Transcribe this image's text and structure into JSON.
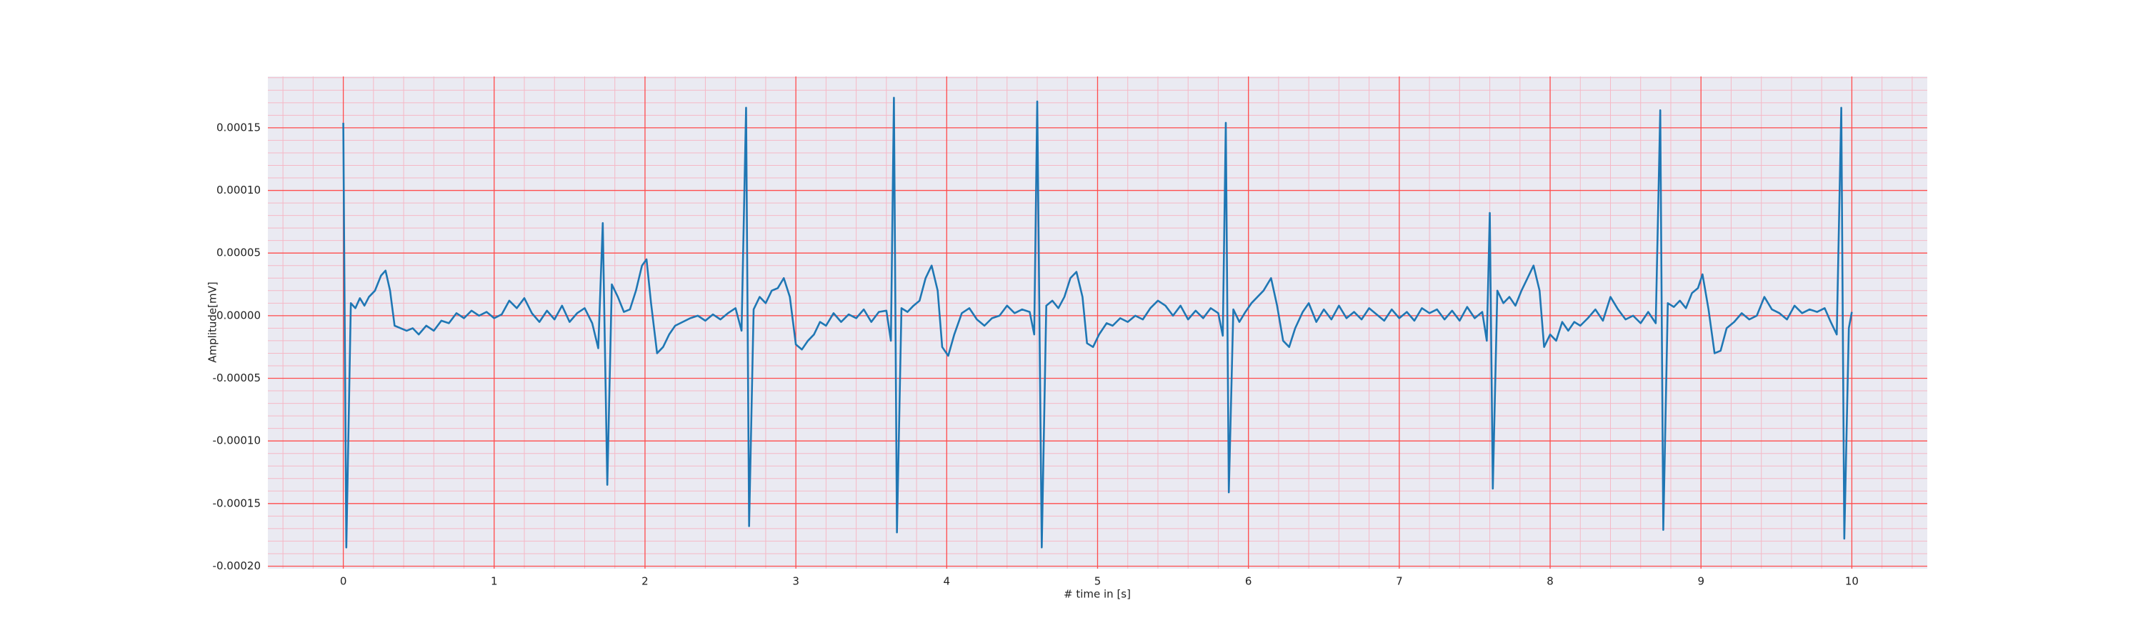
{
  "chart_data": {
    "type": "line",
    "xlabel": "# time in [s]",
    "ylabel": "Amplitude[mV]",
    "color": "#1f77b4",
    "background": "#eaeaf2",
    "grid": true,
    "grid_color": "#ff4d4d",
    "minor_grid_color": "#f5b8c6",
    "minor_divisions": 5,
    "xlim": [
      -0.5,
      10.5
    ],
    "ylim": [
      -0.000202,
      0.000191
    ],
    "xticks": [
      0,
      1,
      2,
      3,
      4,
      5,
      6,
      7,
      8,
      9,
      10
    ],
    "yticks": [
      {
        "value": -0.0002,
        "label": "-0.00020"
      },
      {
        "value": -0.00015,
        "label": "-0.00015"
      },
      {
        "value": -0.0001,
        "label": "-0.00010"
      },
      {
        "value": -5e-05,
        "label": "-0.00005"
      },
      {
        "value": 0,
        "label": "0.00000"
      },
      {
        "value": 5e-05,
        "label": "0.00005"
      },
      {
        "value": 0.0001,
        "label": "0.00010"
      },
      {
        "value": 0.00015,
        "label": "0.00015"
      }
    ],
    "x": [
      0.0,
      0.02,
      0.05,
      0.08,
      0.11,
      0.14,
      0.17,
      0.21,
      0.25,
      0.28,
      0.31,
      0.34,
      0.38,
      0.42,
      0.46,
      0.5,
      0.55,
      0.6,
      0.65,
      0.7,
      0.75,
      0.8,
      0.85,
      0.9,
      0.95,
      1.0,
      1.05,
      1.1,
      1.15,
      1.2,
      1.25,
      1.3,
      1.35,
      1.4,
      1.45,
      1.5,
      1.55,
      1.6,
      1.65,
      1.69,
      1.72,
      1.75,
      1.78,
      1.82,
      1.86,
      1.9,
      1.94,
      1.98,
      2.01,
      2.04,
      2.08,
      2.12,
      2.16,
      2.2,
      2.25,
      2.3,
      2.35,
      2.4,
      2.45,
      2.5,
      2.55,
      2.6,
      2.64,
      2.67,
      2.69,
      2.72,
      2.76,
      2.8,
      2.84,
      2.88,
      2.92,
      2.96,
      3.0,
      3.04,
      3.08,
      3.12,
      3.16,
      3.2,
      3.25,
      3.3,
      3.35,
      3.4,
      3.45,
      3.5,
      3.55,
      3.6,
      3.63,
      3.65,
      3.67,
      3.7,
      3.74,
      3.78,
      3.82,
      3.86,
      3.9,
      3.94,
      3.97,
      4.01,
      4.05,
      4.1,
      4.15,
      4.2,
      4.25,
      4.3,
      4.35,
      4.4,
      4.45,
      4.5,
      4.55,
      4.58,
      4.6,
      4.63,
      4.66,
      4.7,
      4.74,
      4.78,
      4.82,
      4.86,
      4.9,
      4.93,
      4.97,
      5.01,
      5.06,
      5.1,
      5.15,
      5.2,
      5.25,
      5.3,
      5.35,
      5.4,
      5.45,
      5.5,
      5.55,
      5.6,
      5.65,
      5.7,
      5.75,
      5.8,
      5.83,
      5.85,
      5.87,
      5.9,
      5.94,
      5.98,
      6.02,
      6.06,
      6.1,
      6.15,
      6.19,
      6.23,
      6.27,
      6.31,
      6.36,
      6.4,
      6.45,
      6.5,
      6.55,
      6.6,
      6.65,
      6.7,
      6.75,
      6.8,
      6.85,
      6.9,
      6.95,
      7.0,
      7.05,
      7.1,
      7.15,
      7.2,
      7.25,
      7.3,
      7.35,
      7.4,
      7.45,
      7.5,
      7.55,
      7.58,
      7.6,
      7.62,
      7.65,
      7.69,
      7.73,
      7.77,
      7.81,
      7.85,
      7.89,
      7.93,
      7.96,
      8.0,
      8.04,
      8.08,
      8.12,
      8.16,
      8.2,
      8.25,
      8.3,
      8.35,
      8.4,
      8.45,
      8.5,
      8.55,
      8.6,
      8.65,
      8.7,
      8.73,
      8.75,
      8.78,
      8.82,
      8.86,
      8.9,
      8.94,
      8.98,
      9.01,
      9.05,
      9.09,
      9.13,
      9.17,
      9.22,
      9.27,
      9.32,
      9.37,
      9.42,
      9.47,
      9.52,
      9.57,
      9.62,
      9.67,
      9.72,
      9.77,
      9.82,
      9.86,
      9.9,
      9.93,
      9.95,
      9.98,
      10.0
    ],
    "values": [
      0.000154,
      -0.000185,
      1e-05,
      6e-06,
      1.4e-05,
      8e-06,
      1.5e-05,
      2e-05,
      3.2e-05,
      3.6e-05,
      2e-05,
      -8e-06,
      -1e-05,
      -1.2e-05,
      -1e-05,
      -1.5e-05,
      -8e-06,
      -1.2e-05,
      -4e-06,
      -6e-06,
      2e-06,
      -2e-06,
      4e-06,
      0,
      3e-06,
      -2e-06,
      1e-06,
      1.2e-05,
      6e-06,
      1.4e-05,
      2e-06,
      -5e-06,
      4e-06,
      -3e-06,
      8e-06,
      -5e-06,
      2e-06,
      6e-06,
      -6e-06,
      -2.6e-05,
      7.4e-05,
      -0.000135,
      2.5e-05,
      1.5e-05,
      3e-06,
      5e-06,
      2e-05,
      4e-05,
      4.5e-05,
      1e-05,
      -3e-05,
      -2.5e-05,
      -1.5e-05,
      -8e-06,
      -5e-06,
      -2e-06,
      0,
      -4e-06,
      1e-06,
      -3e-06,
      2e-06,
      6e-06,
      -1.2e-05,
      0.000166,
      -0.000168,
      5e-06,
      1.5e-05,
      1e-05,
      2e-05,
      2.2e-05,
      3e-05,
      1.5e-05,
      -2.3e-05,
      -2.7e-05,
      -2e-05,
      -1.5e-05,
      -5e-06,
      -8e-06,
      2e-06,
      -5e-06,
      1e-06,
      -2e-06,
      5e-06,
      -5e-06,
      3e-06,
      4e-06,
      -2e-05,
      0.000174,
      -0.000173,
      6e-06,
      3e-06,
      8e-06,
      1.2e-05,
      3e-05,
      4e-05,
      2e-05,
      -2.5e-05,
      -3.2e-05,
      -1.5e-05,
      2e-06,
      6e-06,
      -3e-06,
      -8e-06,
      -2e-06,
      0,
      8e-06,
      2e-06,
      5e-06,
      3e-06,
      -1.5e-05,
      0.000171,
      -0.000185,
      8e-06,
      1.2e-05,
      6e-06,
      1.5e-05,
      3e-05,
      3.5e-05,
      1.5e-05,
      -2.2e-05,
      -2.5e-05,
      -1.5e-05,
      -6e-06,
      -8e-06,
      -2e-06,
      -5e-06,
      0,
      -3e-06,
      6e-06,
      1.2e-05,
      8e-06,
      0,
      8e-06,
      -3e-06,
      4e-06,
      -2e-06,
      6e-06,
      2e-06,
      -1.6e-05,
      0.000154,
      -0.000141,
      5e-06,
      -5e-06,
      3e-06,
      1e-05,
      1.5e-05,
      2e-05,
      3e-05,
      8e-06,
      -2e-05,
      -2.5e-05,
      -1e-05,
      3e-06,
      1e-05,
      -5e-06,
      5e-06,
      -3e-06,
      8e-06,
      -2e-06,
      3e-06,
      -3e-06,
      6e-06,
      1e-06,
      -4e-06,
      5e-06,
      -2e-06,
      3e-06,
      -4e-06,
      6e-06,
      2e-06,
      5e-06,
      -3e-06,
      4e-06,
      -4e-06,
      7e-06,
      -2e-06,
      3e-06,
      -2e-05,
      8.2e-05,
      -0.000138,
      2e-05,
      1e-05,
      1.5e-05,
      8e-06,
      2e-05,
      3e-05,
      4e-05,
      2e-05,
      -2.5e-05,
      -1.5e-05,
      -2e-05,
      -5e-06,
      -1.2e-05,
      -5e-06,
      -8e-06,
      -2e-06,
      5e-06,
      -4e-06,
      1.5e-05,
      5e-06,
      -3e-06,
      0,
      -6e-06,
      3e-06,
      -6e-06,
      0.000164,
      -0.000171,
      1e-05,
      7e-06,
      1.2e-05,
      6e-06,
      1.8e-05,
      2.2e-05,
      3.3e-05,
      5e-06,
      -3e-05,
      -2.8e-05,
      -1e-05,
      -5e-06,
      2e-06,
      -3e-06,
      0,
      1.5e-05,
      5e-06,
      2e-06,
      -3e-06,
      8e-06,
      2e-06,
      5e-06,
      3e-06,
      6e-06,
      -5e-06,
      -1.5e-05,
      0.000166,
      -0.000178,
      -1e-05,
      3e-06
    ]
  }
}
